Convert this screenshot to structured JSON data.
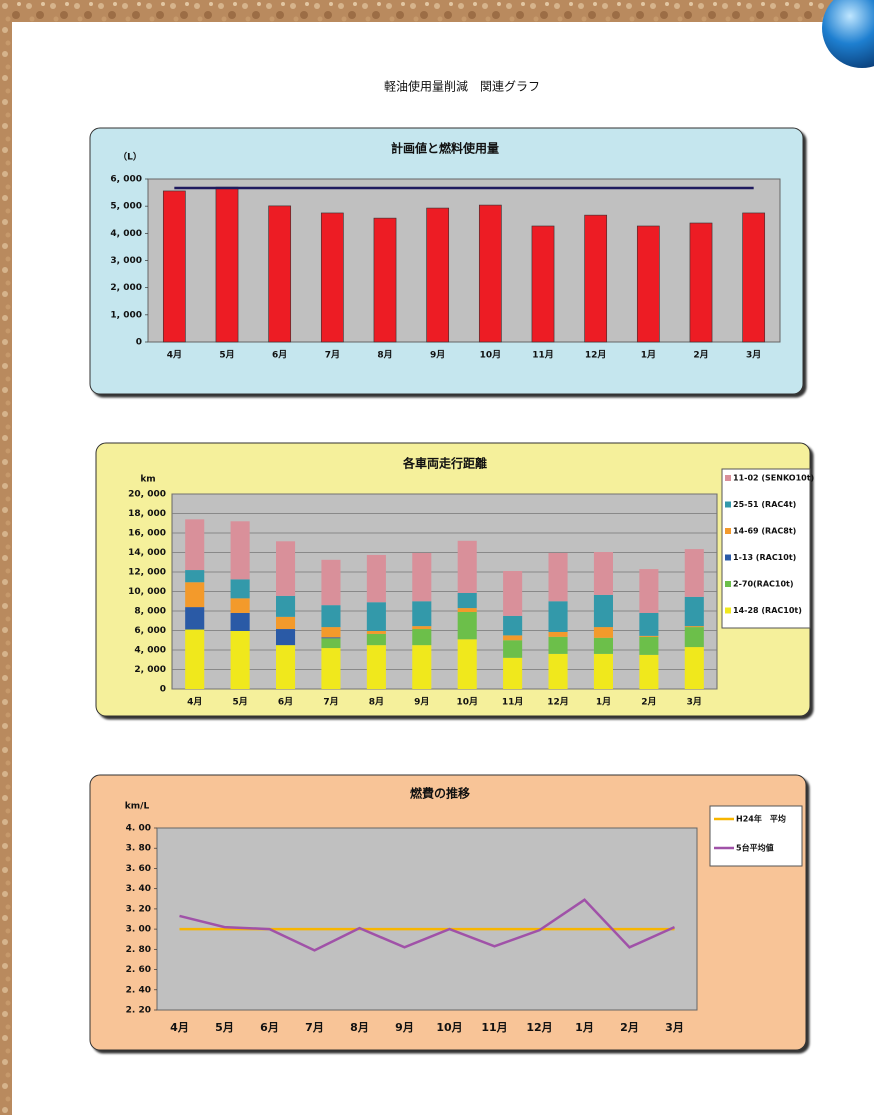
{
  "page_title": "軽油使用量削減　関連グラフ",
  "chart_data": [
    {
      "type": "bar",
      "title": "計画値と燃料使用量",
      "y_label": "（L）",
      "categories": [
        "4月",
        "5月",
        "6月",
        "7月",
        "8月",
        "9月",
        "10月",
        "11月",
        "12月",
        "1月",
        "2月",
        "3月"
      ],
      "series": [
        {
          "type": "bar",
          "color": "#ed1c24",
          "values": [
            5560,
            5700,
            5010,
            4750,
            4560,
            4930,
            5040,
            4270,
            4670,
            4270,
            4380,
            4750
          ]
        },
        {
          "type": "line",
          "color": "#1f1a5e",
          "values": [
            5670,
            5670,
            5670,
            5670,
            5670,
            5670,
            5670,
            5670,
            5670,
            5670,
            5670,
            5670
          ]
        }
      ],
      "ylim": [
        0,
        6000
      ],
      "yticks": [
        0,
        {
          "value": 1000,
          "label": "1, 000"
        },
        {
          "value": 2000,
          "label": "2, 000"
        },
        {
          "value": 3000,
          "label": "3, 000"
        },
        {
          "value": 4000,
          "label": "4, 000"
        },
        {
          "value": 5000,
          "label": "5, 000"
        },
        {
          "value": 6000,
          "label": "6, 000"
        }
      ],
      "grid": false
    },
    {
      "type": "stacked_bar",
      "title": "各車両走行距離",
      "y_label": "km",
      "categories": [
        "4月",
        "5月",
        "6月",
        "7月",
        "8月",
        "9月",
        "10月",
        "11月",
        "12月",
        "1月",
        "2月",
        "3月"
      ],
      "series": [
        {
          "name": "14-28 (RAC10t)",
          "color": "#f0e81c",
          "values": [
            6100,
            5950,
            4500,
            4200,
            4500,
            4500,
            5100,
            3200,
            3600,
            3600,
            3500,
            4300
          ]
        },
        {
          "name": "2-70(RAC10t)",
          "color": "#6cbf4a",
          "values": [
            0,
            0,
            0,
            1000,
            1150,
            1650,
            2800,
            1800,
            1750,
            1650,
            1850,
            2050
          ]
        },
        {
          "name": "1-13 (RAC10t)",
          "color": "#2a5aa6",
          "values": [
            2300,
            1850,
            1650,
            100,
            0,
            0,
            0,
            0,
            0,
            0,
            0,
            0
          ]
        },
        {
          "name": "14-69 (RAC8t)",
          "color": "#f39a2b",
          "values": [
            2550,
            1500,
            1250,
            1050,
            300,
            300,
            400,
            500,
            500,
            1100,
            100,
            100
          ]
        },
        {
          "name": "25-51 (RAC4t)",
          "color": "#3399aa",
          "values": [
            1250,
            1950,
            2150,
            2250,
            2950,
            2550,
            1550,
            2000,
            3150,
            3300,
            2350,
            3000
          ]
        },
        {
          "name": "11-02 (SENKO10t)",
          "color": "#d9909a",
          "values": [
            5200,
            5950,
            5600,
            4650,
            4850,
            4950,
            5350,
            4600,
            4950,
            4400,
            4500,
            4900
          ]
        }
      ],
      "ylim": [
        0,
        20000
      ],
      "yticks": [
        0,
        {
          "value": 2000,
          "label": "2, 000"
        },
        {
          "value": 4000,
          "label": "4, 000"
        },
        {
          "value": 6000,
          "label": "6, 000"
        },
        {
          "value": 8000,
          "label": "8, 000"
        },
        {
          "value": 10000,
          "label": "10, 000"
        },
        {
          "value": 12000,
          "label": "12, 000"
        },
        {
          "value": 14000,
          "label": "14, 000"
        },
        {
          "value": 16000,
          "label": "16, 000"
        },
        {
          "value": 18000,
          "label": "18, 000"
        },
        {
          "value": 20000,
          "label": "20, 000"
        }
      ],
      "grid": true,
      "legend": "right"
    },
    {
      "type": "line",
      "title": "燃費の推移",
      "y_label": "km/L",
      "categories": [
        "4月",
        "5月",
        "6月",
        "7月",
        "8月",
        "9月",
        "10月",
        "11月",
        "12月",
        "1月",
        "2月",
        "3月"
      ],
      "series": [
        {
          "name": "H24年　平均",
          "color": "#f7b500",
          "values": [
            3.0,
            3.0,
            3.0,
            3.0,
            3.0,
            3.0,
            3.0,
            3.0,
            3.0,
            3.0,
            3.0,
            3.0
          ]
        },
        {
          "name": "5台平均値",
          "color": "#a052a8",
          "values": [
            3.13,
            3.02,
            3.0,
            2.79,
            3.01,
            2.82,
            3.0,
            2.83,
            2.99,
            3.29,
            2.82,
            3.02
          ]
        }
      ],
      "ylim": [
        2.2,
        4.0
      ],
      "yticks": [
        {
          "value": 2.2,
          "label": "2. 20"
        },
        {
          "value": 2.4,
          "label": "2. 40"
        },
        {
          "value": 2.6,
          "label": "2. 60"
        },
        {
          "value": 2.8,
          "label": "2. 80"
        },
        {
          "value": 3.0,
          "label": "3. 00"
        },
        {
          "value": 3.2,
          "label": "3. 20"
        },
        {
          "value": 3.4,
          "label": "3. 40"
        },
        {
          "value": 3.6,
          "label": "3. 60"
        },
        {
          "value": 3.8,
          "label": "3. 80"
        },
        {
          "value": 4.0,
          "label": "4. 00"
        }
      ],
      "grid": false,
      "legend": "right"
    }
  ]
}
